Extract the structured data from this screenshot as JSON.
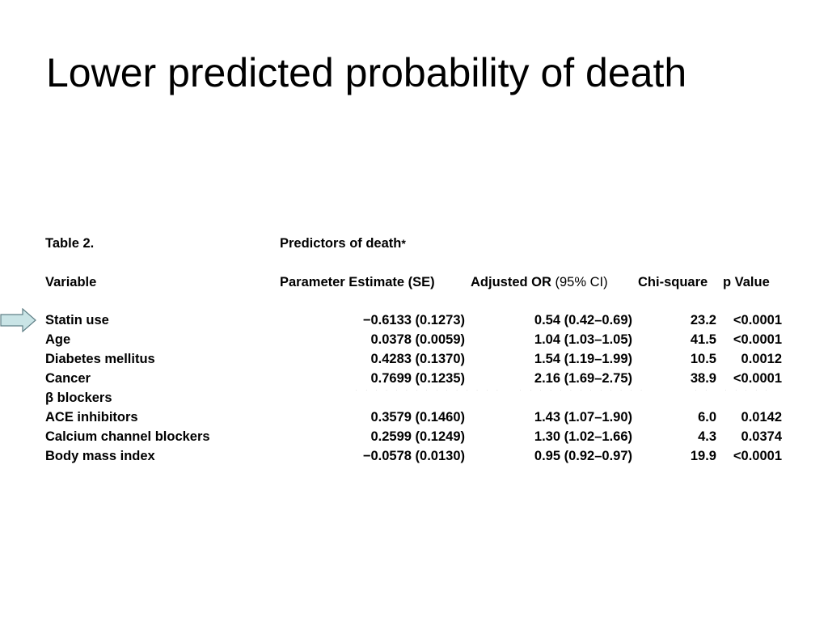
{
  "slide": {
    "title": "Lower predicted probability of death"
  },
  "table": {
    "caption_label": "Table 2.",
    "caption_title": "Predictors of death",
    "caption_marker": "*",
    "headers": {
      "variable": "Variable",
      "parameter_estimate": "Parameter Estimate (SE)",
      "adjusted_or_main": "Adjusted OR ",
      "adjusted_or_ci": "(95% CI)",
      "chi_square": "Chi-square",
      "p_value": "p Value"
    },
    "rows": [
      {
        "variable": "Statin use",
        "pe": "−0.6133 (0.1273)",
        "or": "0.54 (0.42–0.69)",
        "chi": "23.2",
        "p": "<0.0001"
      },
      {
        "variable": "Age",
        "pe": "0.0378 (0.0059)",
        "or": "1.04 (1.03–1.05)",
        "chi": "41.5",
        "p": "<0.0001"
      },
      {
        "variable": "Diabetes mellitus",
        "pe": "0.4283 (0.1370)",
        "or": "1.54 (1.19–1.99)",
        "chi": "10.5",
        "p": "0.0012"
      },
      {
        "variable": "Cancer",
        "pe": "0.7699 (0.1235)",
        "or": "2.16 (1.69–2.75)",
        "chi": "38.9",
        "p": "<0.0001"
      },
      {
        "variable": "β blockers",
        "pe": "",
        "or": "",
        "chi": "",
        "p": ""
      },
      {
        "variable": "ACE inhibitors",
        "pe": "0.3579 (0.1460)",
        "or": "1.43 (1.07–1.90)",
        "chi": "6.0",
        "p": "0.0142"
      },
      {
        "variable": "Calcium channel blockers",
        "pe": "0.2599 (0.1249)",
        "or": "1.30 (1.02–1.66)",
        "chi": "4.3",
        "p": "0.0374"
      },
      {
        "variable": "Body mass index",
        "pe": "−0.0578 (0.0130)",
        "or": "0.95 (0.92–0.97)",
        "chi": "19.9",
        "p": "<0.0001"
      }
    ]
  },
  "colors": {
    "arrow_fill": "#c9e4e6",
    "arrow_stroke": "#5f7f86"
  },
  "icons": {
    "pointer": "right-arrow-icon"
  }
}
